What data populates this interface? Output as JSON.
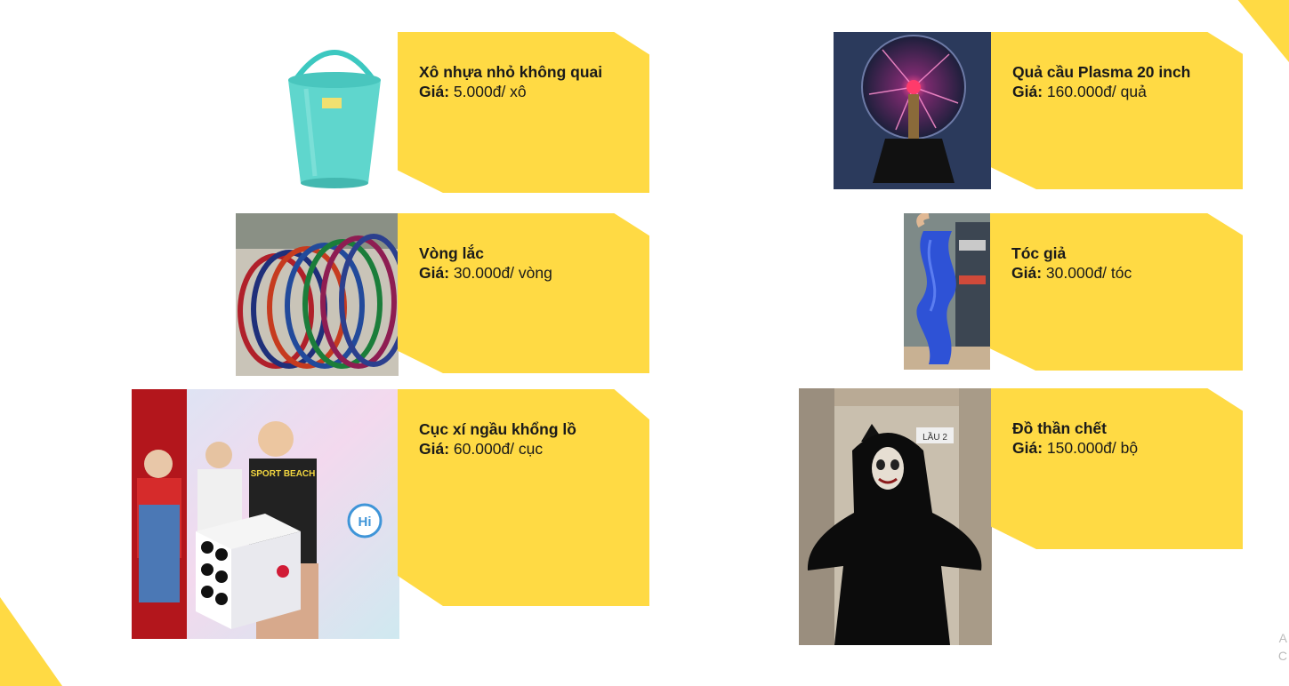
{
  "products": [
    {
      "name": "Xô nhựa nhỏ không quai",
      "price_label": "Giá:",
      "price": "5.000đ/ xô",
      "image_icon": "bucket-icon"
    },
    {
      "name": "Vòng lắc",
      "price_label": "Giá:",
      "price": "30.000đ/ vòng",
      "image_icon": "hula-hoop-icon"
    },
    {
      "name": "Cục xí ngầu khổng lồ",
      "price_label": "Giá:",
      "price": "60.000đ/ cục",
      "image_icon": "giant-dice-icon"
    },
    {
      "name": "Quả cầu Plasma 20 inch",
      "price_label": "Giá:",
      "price": "160.000đ/ quả",
      "image_icon": "plasma-ball-icon"
    },
    {
      "name": "Tóc giả",
      "price_label": "Giá:",
      "price": "30.000đ/ tóc",
      "image_icon": "wig-icon"
    },
    {
      "name": "Đồ thần chết",
      "price_label": "Giá:",
      "price": "150.000đ/ bộ",
      "image_icon": "grim-reaper-costume-icon"
    }
  ],
  "photo_texts": {
    "dice_shirt": "SPORT BEACH",
    "dice_sign": "Hi",
    "elevator_sign": "LẦU 2"
  },
  "edge_marks": [
    "A",
    "C"
  ],
  "colors": {
    "accent": "#FFDA44",
    "text": "#1a1a1a",
    "background": "#ffffff"
  }
}
